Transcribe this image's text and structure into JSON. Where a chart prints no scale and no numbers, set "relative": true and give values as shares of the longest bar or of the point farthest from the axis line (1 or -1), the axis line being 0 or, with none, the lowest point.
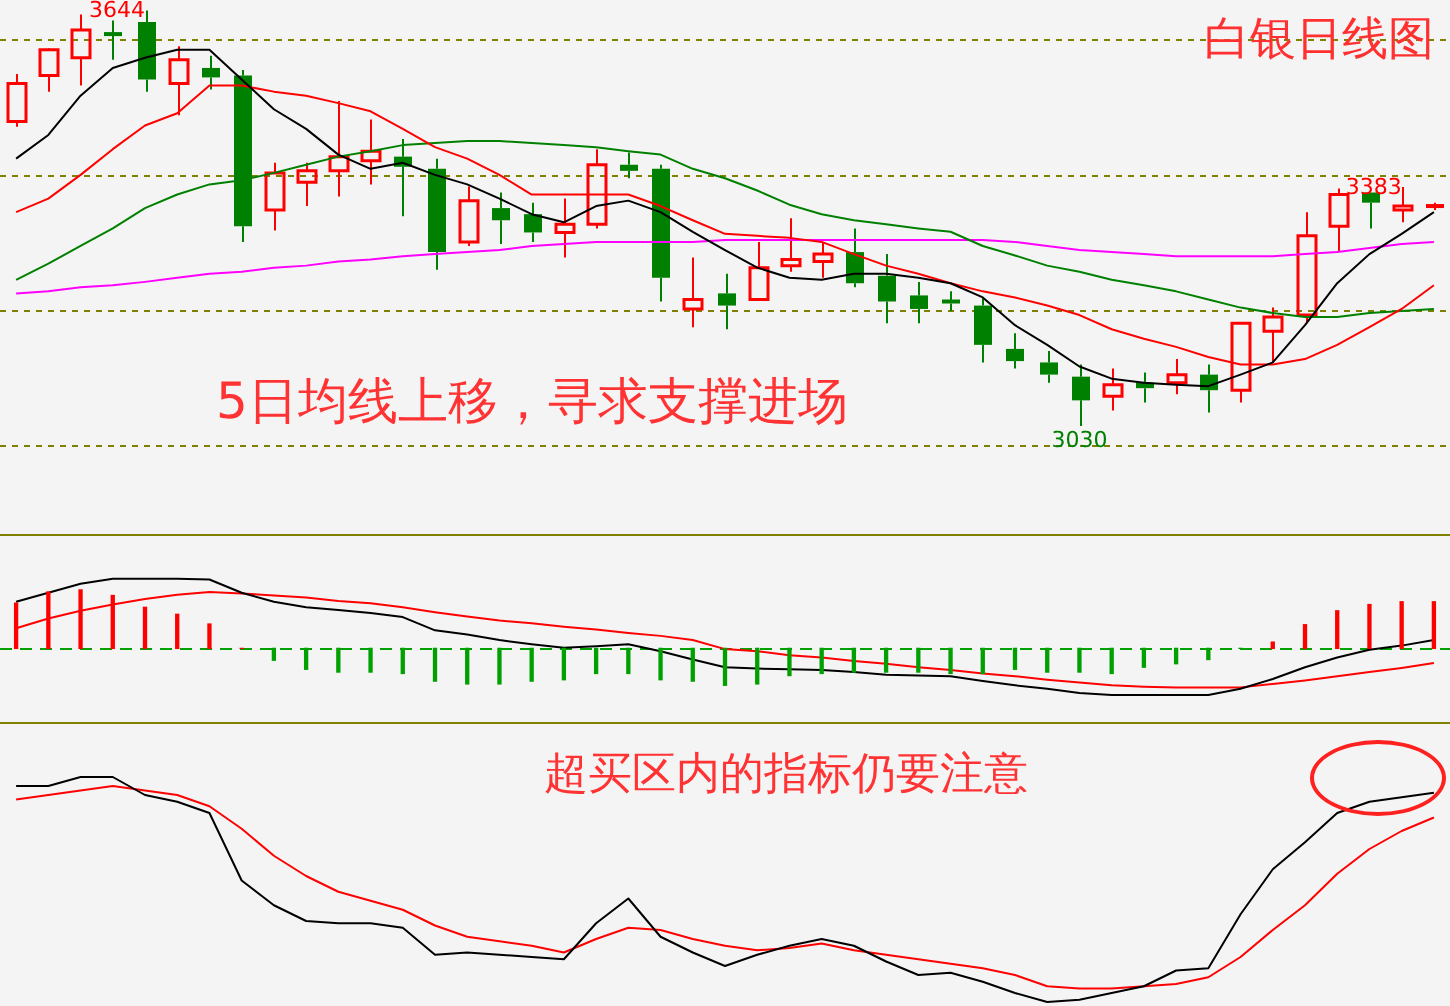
{
  "chart_data": [
    {
      "type": "candlestick",
      "title": "白银日线图",
      "grid": "y",
      "categories": [
        null,
        null,
        null,
        null,
        null,
        null,
        null,
        null,
        null,
        null,
        null,
        null,
        null,
        null,
        null,
        null,
        null,
        null,
        null,
        null,
        null,
        null,
        null,
        null,
        null,
        null,
        null,
        null,
        null,
        null,
        null,
        null,
        null,
        null,
        null,
        null,
        null,
        null,
        null,
        null,
        null,
        null,
        null,
        null,
        null
      ],
      "ohlc": [
        [
          3480,
          3550,
          3472,
          3536
        ],
        [
          3548,
          3588,
          3524,
          3586
        ],
        [
          3574,
          3638,
          3533,
          3615
        ],
        [
          3609,
          3629,
          3571,
          3606
        ],
        [
          3627,
          3644,
          3524,
          3542
        ],
        [
          3536,
          3591,
          3489,
          3571
        ],
        [
          3559,
          3577,
          3527,
          3545
        ],
        [
          3548,
          3556,
          3302,
          3325
        ],
        [
          3349,
          3419,
          3319,
          3404
        ],
        [
          3390,
          3419,
          3355,
          3407
        ],
        [
          3407,
          3510,
          3369,
          3428
        ],
        [
          3422,
          3483,
          3387,
          3436
        ],
        [
          3428,
          3454,
          3340,
          3413
        ],
        [
          3410,
          3425,
          3261,
          3287
        ],
        [
          3302,
          3384,
          3296,
          3363
        ],
        [
          3352,
          3375,
          3299,
          3334
        ],
        [
          3343,
          3360,
          3302,
          3316
        ],
        [
          3316,
          3366,
          3279,
          3328
        ],
        [
          3328,
          3439,
          3322,
          3416
        ],
        [
          3416,
          3434,
          3396,
          3407
        ],
        [
          3410,
          3416,
          3214,
          3249
        ],
        [
          3203,
          3279,
          3176,
          3217
        ],
        [
          3226,
          3255,
          3173,
          3208
        ],
        [
          3217,
          3302,
          3217,
          3264
        ],
        [
          3267,
          3337,
          3258,
          3276
        ],
        [
          3273,
          3302,
          3249,
          3284
        ],
        [
          3287,
          3322,
          3235,
          3241
        ],
        [
          3252,
          3284,
          3182,
          3214
        ],
        [
          3223,
          3243,
          3182,
          3203
        ],
        [
          3214,
          3229,
          3200,
          3211
        ],
        [
          3208,
          3220,
          3124,
          3150
        ],
        [
          3144,
          3167,
          3115,
          3126
        ],
        [
          3124,
          3141,
          3094,
          3106
        ],
        [
          3103,
          3121,
          3030,
          3068
        ],
        [
          3074,
          3115,
          3053,
          3091
        ],
        [
          3094,
          3109,
          3065,
          3086
        ],
        [
          3094,
          3129,
          3077,
          3106
        ],
        [
          3106,
          3121,
          3050,
          3083
        ],
        [
          3083,
          3182,
          3065,
          3182
        ],
        [
          3170,
          3205,
          3124,
          3191
        ],
        [
          3194,
          3346,
          3182,
          3311
        ],
        [
          3325,
          3381,
          3287,
          3372
        ],
        [
          3375,
          3375,
          3322,
          3360
        ],
        [
          3349,
          3383,
          3331,
          3355
        ],
        [
          3352,
          3360,
          3349,
          3355
        ]
      ],
      "colors": [
        "#ff0000",
        "#ff0000",
        "#ff0000",
        "#008000",
        "#008000",
        "#ff0000",
        "#008000",
        "#008000",
        "#ff0000",
        "#ff0000",
        "#ff0000",
        "#ff0000",
        "#008000",
        "#008000",
        "#ff0000",
        "#008000",
        "#008000",
        "#ff0000",
        "#ff0000",
        "#008000",
        "#008000",
        "#ff0000",
        "#008000",
        "#ff0000",
        "#ff0000",
        "#ff0000",
        "#008000",
        "#008000",
        "#008000",
        "#008000",
        "#008000",
        "#008000",
        "#008000",
        "#008000",
        "#ff0000",
        "#008000",
        "#ff0000",
        "#008000",
        "#ff0000",
        "#ff0000",
        "#ff0000",
        "#ff0000",
        "#008000",
        "#ff0000",
        "#ff0000"
      ],
      "series": [
        {
          "type": "line",
          "color": "#000000",
          "values": [
            3425,
            3460,
            3518,
            3559,
            3574,
            3586,
            3586,
            3542,
            3498,
            3469,
            3431,
            3410,
            3419,
            3401,
            3387,
            3366,
            3343,
            3331,
            3355,
            3363,
            3346,
            3317,
            3290,
            3264,
            3249,
            3246,
            3255,
            3255,
            3249,
            3241,
            3220,
            3179,
            3150,
            3118,
            3100,
            3094,
            3091,
            3089,
            3106,
            3124,
            3179,
            3241,
            3284,
            3314,
            3346
          ]
        },
        {
          "type": "line",
          "color": "#ff0000",
          "values": [
            3346,
            3366,
            3401,
            3439,
            3474,
            3492,
            3533,
            3533,
            3524,
            3518,
            3507,
            3495,
            3469,
            3442,
            3425,
            3401,
            3372,
            3372,
            3372,
            3372,
            3355,
            3334,
            3314,
            3311,
            3308,
            3302,
            3284,
            3267,
            3255,
            3241,
            3229,
            3220,
            3208,
            3194,
            3173,
            3159,
            3147,
            3132,
            3121,
            3121,
            3129,
            3150,
            3176,
            3203,
            3238
          ]
        },
        {
          "type": "line",
          "color": "#008000",
          "values": [
            3246,
            3270,
            3296,
            3322,
            3352,
            3372,
            3387,
            3393,
            3404,
            3416,
            3428,
            3436,
            3445,
            3448,
            3451,
            3451,
            3448,
            3445,
            3442,
            3436,
            3431,
            3410,
            3396,
            3378,
            3357,
            3343,
            3334,
            3328,
            3322,
            3317,
            3296,
            3282,
            3267,
            3258,
            3246,
            3238,
            3229,
            3217,
            3205,
            3197,
            3191,
            3191,
            3197,
            3200,
            3203
          ]
        },
        {
          "type": "line",
          "color": "#ff00ff",
          "values": [
            3226,
            3229,
            3235,
            3238,
            3243,
            3249,
            3255,
            3258,
            3264,
            3267,
            3273,
            3276,
            3281,
            3284,
            3287,
            3290,
            3296,
            3299,
            3302,
            3302,
            3302,
            3302,
            3305,
            3305,
            3305,
            3305,
            3305,
            3305,
            3305,
            3305,
            3305,
            3302,
            3296,
            3290,
            3287,
            3284,
            3281,
            3281,
            3281,
            3281,
            3284,
            3287,
            3293,
            3299,
            3302
          ]
        }
      ],
      "value_labels": [
        null,
        null,
        null,
        null,
        "3644",
        null,
        null,
        null,
        null,
        null,
        null,
        null,
        null,
        null,
        null,
        null,
        null,
        null,
        null,
        null,
        null,
        null,
        null,
        null,
        null,
        null,
        null,
        null,
        null,
        null,
        null,
        null,
        null,
        "3030",
        null,
        null,
        null,
        null,
        null,
        null,
        null,
        null,
        null,
        "3383",
        null
      ],
      "yticks": [
        {
          "value": 3000,
          "label": null
        },
        {
          "value": 3200,
          "label": null
        },
        {
          "value": 3400,
          "label": null
        },
        {
          "value": 3600,
          "label": null
        }
      ],
      "annotations": [
        "5日均线上移，寻求支撑进场"
      ]
    },
    {
      "type": "bar",
      "relative": true,
      "ref_lines": [
        {
          "axis": "y",
          "value": 0,
          "color": "#00a000",
          "line_style": "dashed"
        }
      ],
      "categories": [
        null,
        null,
        null,
        null,
        null,
        null,
        null,
        null,
        null,
        null,
        null,
        null,
        null,
        null,
        null,
        null,
        null,
        null,
        null,
        null,
        null,
        null,
        null,
        null,
        null,
        null,
        null,
        null,
        null,
        null,
        null,
        null,
        null,
        null,
        null,
        null,
        null,
        null,
        null,
        null,
        null,
        null,
        null,
        null,
        null
      ],
      "series": [
        {
          "type": "bar",
          "colors": [
            "#ff0000",
            "#ff0000",
            "#ff0000",
            "#ff0000",
            "#ff0000",
            "#ff0000",
            "#ff0000",
            "#ff0000",
            "#00a000",
            "#00a000",
            "#00a000",
            "#00a000",
            "#00a000",
            "#00a000",
            "#00a000",
            "#00a000",
            "#00a000",
            "#00a000",
            "#00a000",
            "#00a000",
            "#00a000",
            "#00a000",
            "#00a000",
            "#00a000",
            "#00a000",
            "#00a000",
            "#00a000",
            "#00a000",
            "#00a000",
            "#00a000",
            "#00a000",
            "#00a000",
            "#00a000",
            "#00a000",
            "#00a000",
            "#00a000",
            "#00a000",
            "#00a000",
            "#00a000",
            "#ff0000",
            "#ff0000",
            "#ff0000",
            "#ff0000",
            "#ff0000",
            "#ff0000"
          ],
          "values": [
            0.65,
            0.81,
            0.84,
            0.76,
            0.59,
            0.49,
            0.35,
            0,
            -0.17,
            -0.3,
            -0.34,
            -0.34,
            -0.36,
            -0.47,
            -0.51,
            -0.51,
            -0.47,
            -0.45,
            -0.36,
            -0.36,
            -0.45,
            -0.47,
            -0.53,
            -0.51,
            -0.39,
            -0.36,
            -0.34,
            -0.34,
            -0.34,
            -0.36,
            -0.36,
            -0.3,
            -0.34,
            -0.34,
            -0.36,
            -0.27,
            -0.22,
            -0.16,
            0,
            0.09,
            0.34,
            0.54,
            0.63,
            0.67,
            0.67
          ]
        },
        {
          "type": "line",
          "color": "#000000",
          "values": [
            0.67,
            0.8,
            0.93,
            1.0,
            1.0,
            1.0,
            0.99,
            0.8,
            0.67,
            0.59,
            0.55,
            0.51,
            0.45,
            0.26,
            0.2,
            0.12,
            0.06,
            0.01,
            0.03,
            0.06,
            -0.04,
            -0.16,
            -0.27,
            -0.29,
            -0.3,
            -0.31,
            -0.34,
            -0.38,
            -0.39,
            -0.4,
            -0.47,
            -0.53,
            -0.58,
            -0.64,
            -0.67,
            -0.67,
            -0.67,
            -0.67,
            -0.58,
            -0.44,
            -0.27,
            -0.13,
            -0.02,
            0.04,
            0.12
          ]
        },
        {
          "type": "line",
          "color": "#ff0000",
          "values": [
            0.29,
            0.43,
            0.54,
            0.63,
            0.71,
            0.77,
            0.81,
            0.79,
            0.76,
            0.73,
            0.68,
            0.65,
            0.59,
            0.52,
            0.46,
            0.4,
            0.36,
            0.31,
            0.27,
            0.22,
            0.18,
            0.12,
            -0.01,
            -0.04,
            -0.1,
            -0.13,
            -0.18,
            -0.22,
            -0.27,
            -0.31,
            -0.36,
            -0.4,
            -0.45,
            -0.49,
            -0.53,
            -0.55,
            -0.56,
            -0.56,
            -0.56,
            -0.51,
            -0.46,
            -0.4,
            -0.34,
            -0.28,
            -0.21
          ]
        }
      ]
    },
    {
      "type": "line",
      "relative": true,
      "categories": [
        null,
        null,
        null,
        null,
        null,
        null,
        null,
        null,
        null,
        null,
        null,
        null,
        null,
        null,
        null,
        null,
        null,
        null,
        null,
        null,
        null,
        null,
        null,
        null,
        null,
        null,
        null,
        null,
        null,
        null,
        null,
        null,
        null,
        null,
        null,
        null,
        null,
        null,
        null,
        null,
        null,
        null,
        null,
        null,
        null
      ],
      "series": [
        {
          "color": "#000000",
          "values": [
            0.96,
            0.96,
            1.0,
            1.0,
            0.92,
            0.89,
            0.84,
            0.54,
            0.43,
            0.36,
            0.35,
            0.35,
            0.33,
            0.21,
            0.22,
            0.21,
            0.2,
            0.19,
            0.35,
            0.46,
            0.29,
            0.22,
            0.16,
            0.21,
            0.25,
            0.28,
            0.25,
            0.18,
            0.12,
            0.13,
            0.09,
            0.04,
            0,
            0.01,
            0.04,
            0.07,
            0.14,
            0.15,
            0.39,
            0.59,
            0.71,
            0.84,
            0.89,
            0.91,
            0.93
          ]
        },
        {
          "color": "#ff0000",
          "values": [
            0.9,
            0.92,
            0.94,
            0.96,
            0.94,
            0.92,
            0.87,
            0.77,
            0.65,
            0.56,
            0.49,
            0.45,
            0.41,
            0.34,
            0.29,
            0.27,
            0.25,
            0.22,
            0.28,
            0.33,
            0.32,
            0.28,
            0.25,
            0.23,
            0.24,
            0.26,
            0.23,
            0.21,
            0.19,
            0.17,
            0.15,
            0.12,
            0.07,
            0.06,
            0.06,
            0.07,
            0.08,
            0.11,
            0.2,
            0.32,
            0.43,
            0.57,
            0.68,
            0.76,
            0.82
          ]
        }
      ],
      "annotations": [
        "超买区内的指标仍要注意"
      ]
    }
  ]
}
